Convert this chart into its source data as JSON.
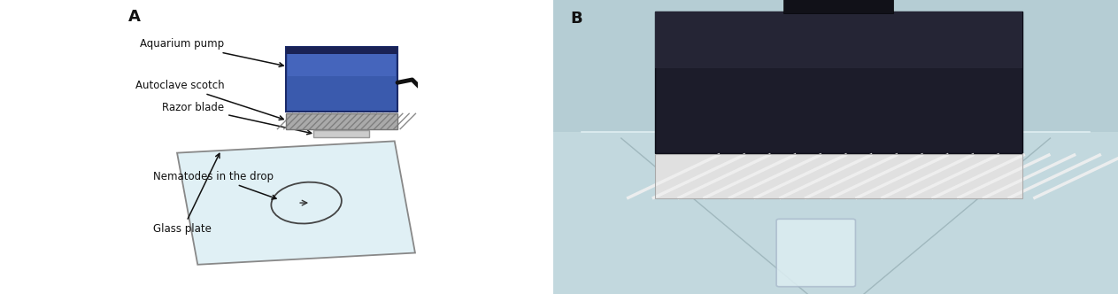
{
  "fig_width": 12.63,
  "fig_height": 3.32,
  "dpi": 100,
  "background_color": "#ffffff",
  "panel_A_label": "A",
  "panel_B_label": "B",
  "labels": [
    "Aquarium pump",
    "Autoclave scotch",
    "Razor blade",
    "Nematodes in the drop",
    "Glass plate"
  ],
  "pump_blue": "#3a5aad",
  "pump_blue_dark": "#2a4080",
  "pump_blue_mid": "#4060bb",
  "scotch_color": "#888888",
  "razor_color": "#cccccc",
  "glass_color": "#e0f0f5",
  "glass_edge": "#888888",
  "arrow_color": "#111111",
  "label_color": "#111111",
  "font_size": 8.5,
  "panel_label_size": 13,
  "cord_color": "#111111",
  "photo_bg": "#b8cfd4",
  "photo_pump_dark": "#1a1a28",
  "photo_tape": "#d8d8d8",
  "photo_glass": "#c0d8de"
}
